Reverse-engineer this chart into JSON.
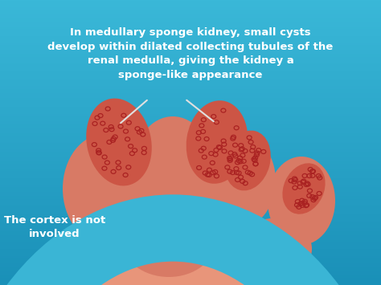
{
  "bg_color": "#3ab5d5",
  "kidney_outer_color": "#7B3010",
  "kidney_main_color": "#E8957A",
  "kidney_light_color": "#F0AA90",
  "medulla_segment_color": "#D87A65",
  "cyst_region_color": "#CC5545",
  "cyst_dot_color": "#AA2222",
  "title_text": "In medullary sponge kidney, small cysts\ndevelop within dilated collecting tubules of the\nrenal medulla, giving the kidney a\nsponge-like appearance",
  "bottom_text": "The cortex is not\ninvolved",
  "text_color": "#FFFFFF",
  "line_color": "#E0E0E0"
}
